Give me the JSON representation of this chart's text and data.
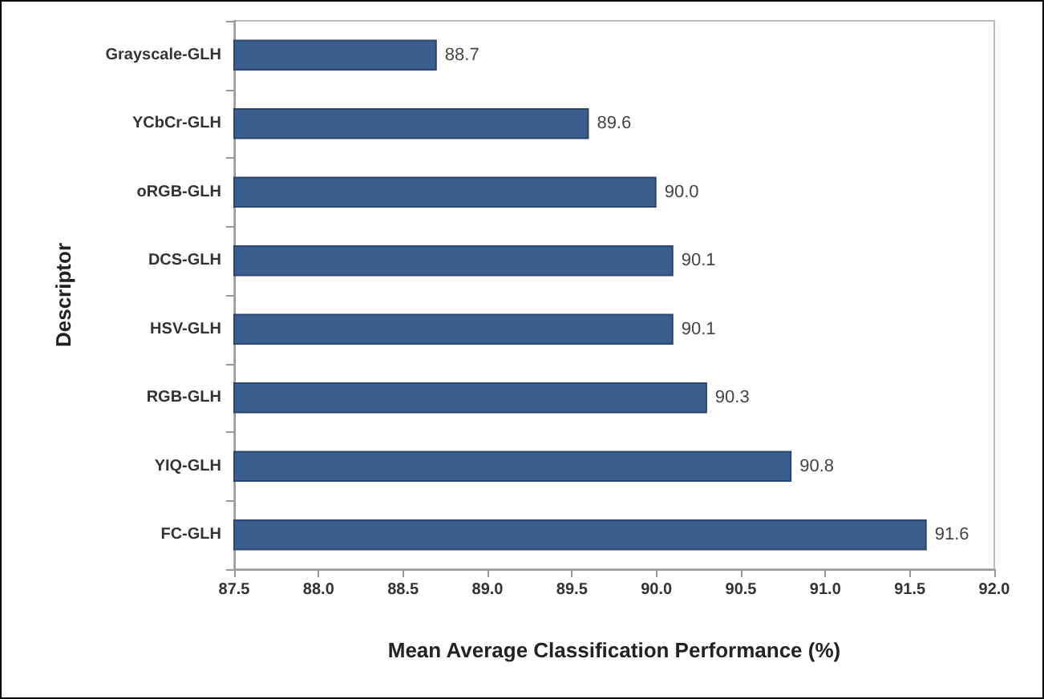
{
  "chart_data": {
    "type": "bar",
    "orientation": "horizontal",
    "xlabel": "Mean Average Classification Performance (%)",
    "ylabel": "Descriptor",
    "categories": [
      "Grayscale-GLH",
      "YCbCr-GLH",
      "oRGB-GLH",
      "DCS-GLH",
      "HSV-GLH",
      "RGB-GLH",
      "YIQ-GLH",
      "FC-GLH"
    ],
    "values": [
      88.7,
      89.6,
      90.0,
      90.1,
      90.1,
      90.3,
      90.8,
      91.6
    ],
    "color": "#3a5f8f",
    "xlim": [
      87.5,
      92.0
    ],
    "xticks": [
      87.5,
      {
        "value": 88,
        "label": "88.0"
      },
      88.5,
      {
        "value": 89,
        "label": "89.0"
      },
      89.5,
      {
        "value": 90,
        "label": "90.0"
      },
      90.5,
      {
        "value": 91,
        "label": "91.0"
      },
      91.5,
      {
        "value": 92,
        "label": "92.0"
      }
    ],
    "value_labels": [
      "88.7",
      "89.6",
      "90.0",
      "90.1",
      "90.1",
      "90.3",
      "90.8",
      "91.6"
    ],
    "grid": false
  }
}
